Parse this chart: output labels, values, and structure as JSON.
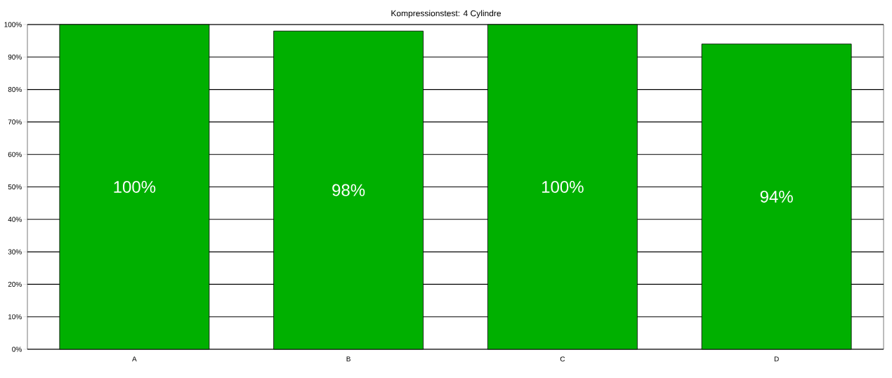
{
  "chart_data": {
    "type": "bar",
    "title": "Kompressionstest: 4 Cylindre",
    "categories": [
      "A",
      "B",
      "C",
      "D"
    ],
    "values": [
      100,
      98,
      100,
      94
    ],
    "value_labels": [
      "100%",
      "98%",
      "100%",
      "94%"
    ],
    "color": "#00b000",
    "ylim": [
      0,
      100
    ],
    "yticks": [
      {
        "value": 0,
        "label": "0%"
      },
      {
        "value": 10,
        "label": "10%"
      },
      {
        "value": 20,
        "label": "20%"
      },
      {
        "value": 30,
        "label": "30%"
      },
      {
        "value": 40,
        "label": "40%"
      },
      {
        "value": 50,
        "label": "50%"
      },
      {
        "value": 60,
        "label": "60%"
      },
      {
        "value": 70,
        "label": "70%"
      },
      {
        "value": 80,
        "label": "80%"
      },
      {
        "value": 90,
        "label": "90%"
      },
      {
        "value": 100,
        "label": "100%"
      }
    ],
    "grid": "y"
  }
}
